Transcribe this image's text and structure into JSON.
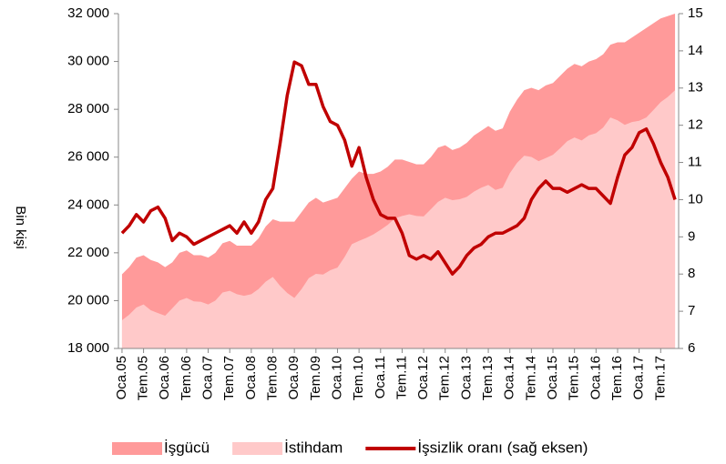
{
  "chart_data": {
    "type": "area-line",
    "y_label": "Bin kişi",
    "categories": [
      "Oca.05",
      null,
      null,
      "Tem.05",
      null,
      null,
      "Oca.06",
      null,
      null,
      "Tem.06",
      null,
      null,
      "Oca.07",
      null,
      null,
      "Tem.07",
      null,
      null,
      "Oca.08",
      null,
      null,
      "Tem.08",
      null,
      null,
      "Oca.09",
      null,
      null,
      "Tem.09",
      null,
      null,
      "Oca.10",
      null,
      null,
      "Tem.10",
      null,
      null,
      "Oca.11",
      null,
      null,
      "Tem.11",
      null,
      null,
      "Oca.12",
      null,
      null,
      "Tem.12",
      null,
      null,
      "Oca.13",
      null,
      null,
      "Tem.13",
      null,
      null,
      "Oca.14",
      null,
      null,
      "Tem.14",
      null,
      null,
      "Oca.15",
      null,
      null,
      "Tem.15",
      null,
      null,
      "Oca.16",
      null,
      null,
      "Tem.16",
      null,
      null,
      "Oca.17",
      null,
      null,
      "Tem.17",
      null,
      null
    ],
    "series": [
      {
        "name": "İşgücü",
        "color": "#ff9a9a",
        "kind": "area",
        "values": [
          21100,
          21400,
          21800,
          21900,
          21700,
          21600,
          21400,
          21600,
          22000,
          22100,
          21900,
          21900,
          21800,
          22000,
          22400,
          22500,
          22300,
          22300,
          22300,
          22600,
          23100,
          23400,
          23300,
          23300,
          23300,
          23700,
          24100,
          24300,
          24100,
          24200,
          24300,
          24700,
          25100,
          25400,
          25300,
          25300,
          25400,
          25600,
          25900,
          25900,
          25800,
          25700,
          25700,
          26000,
          26400,
          26500,
          26300,
          26400,
          26600,
          26900,
          27100,
          27300,
          27100,
          27200,
          27900,
          28400,
          28800,
          28900,
          28800,
          29000,
          29100,
          29400,
          29700,
          29900,
          29800,
          30000,
          30100,
          30300,
          30700,
          30800,
          30800,
          31000,
          31200,
          31400,
          31600,
          31800,
          31900,
          32000
        ]
      },
      {
        "name": "İstihdam",
        "color": "#ffc9c9",
        "kind": "area",
        "values": [
          19180,
          19410,
          19710,
          19840,
          19600,
          19480,
          19370,
          19680,
          20000,
          20110,
          19970,
          19950,
          19840,
          20000,
          20340,
          20410,
          20270,
          20200,
          20270,
          20480,
          20790,
          20990,
          20620,
          20320,
          20110,
          20480,
          20940,
          21120,
          21090,
          21270,
          21380,
          21830,
          22360,
          22500,
          22620,
          22770,
          22960,
          23170,
          23440,
          23540,
          23610,
          23540,
          23520,
          23820,
          24130,
          24300,
          24200,
          24240,
          24340,
          24560,
          24720,
          24840,
          24630,
          24720,
          25330,
          25760,
          26060,
          26010,
          25830,
          25960,
          26100,
          26370,
          26670,
          26820,
          26700,
          26910,
          27000,
          27240,
          27660,
          27540,
          27350,
          27470,
          27520,
          27660,
          27970,
          28300,
          28520,
          28800
        ]
      },
      {
        "name": "İşsizlik oranı (sağ eksen)",
        "color": "#c00000",
        "kind": "line",
        "axis": "y2",
        "values": [
          9.1,
          9.3,
          9.6,
          9.4,
          9.7,
          9.8,
          9.5,
          8.9,
          9.1,
          9.0,
          8.8,
          8.9,
          9.0,
          9.1,
          9.2,
          9.3,
          9.1,
          9.4,
          9.1,
          9.4,
          10.0,
          10.3,
          11.5,
          12.8,
          13.7,
          13.6,
          13.1,
          13.1,
          12.5,
          12.1,
          12.0,
          11.6,
          10.9,
          11.4,
          10.6,
          10.0,
          9.6,
          9.5,
          9.5,
          9.1,
          8.5,
          8.4,
          8.5,
          8.4,
          8.6,
          8.3,
          8.0,
          8.2,
          8.5,
          8.7,
          8.8,
          9.0,
          9.1,
          9.1,
          9.2,
          9.3,
          9.5,
          10.0,
          10.3,
          10.5,
          10.3,
          10.3,
          10.2,
          10.3,
          10.4,
          10.3,
          10.3,
          10.1,
          9.9,
          10.6,
          11.2,
          11.4,
          11.8,
          11.9,
          11.5,
          11.0,
          10.6,
          10.0
        ]
      }
    ],
    "ylim": [
      18000,
      32000
    ],
    "yticks": [
      {
        "value": 18000,
        "label": "18 000"
      },
      {
        "value": 20000,
        "label": "20 000"
      },
      {
        "value": 22000,
        "label": "22 000"
      },
      {
        "value": 24000,
        "label": "24 000"
      },
      {
        "value": 26000,
        "label": "26 000"
      },
      {
        "value": 28000,
        "label": "28 000"
      },
      {
        "value": 30000,
        "label": "30 000"
      },
      {
        "value": 32000,
        "label": "32 000"
      }
    ],
    "y2lim": [
      6,
      15
    ],
    "y2ticks": [
      6,
      7,
      8,
      9,
      10,
      11,
      12,
      13,
      14,
      15
    ],
    "legend": "bottom"
  }
}
